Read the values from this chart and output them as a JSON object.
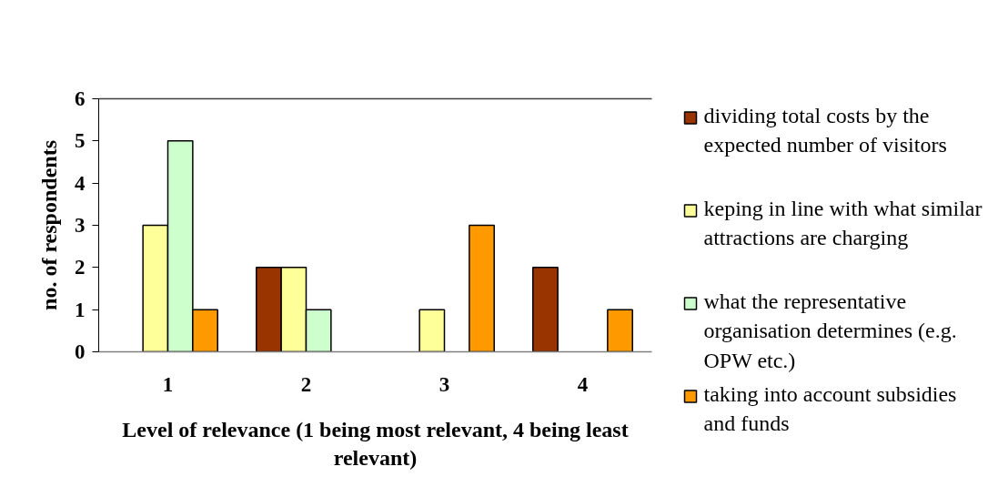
{
  "chart_data": {
    "type": "bar",
    "xlabel": "Level of relevance (1 being most relevant, 4 being least relevant)",
    "ylabel": "no. of respondents",
    "categories": [
      "1",
      "2",
      "3",
      "4"
    ],
    "series": [
      {
        "name": "dividing total costs by the expected number of visitors",
        "color": "#993300",
        "values": [
          0,
          2,
          0,
          2
        ]
      },
      {
        "name": "keping in line with what similar attractions are charging",
        "color": "#ffff99",
        "values": [
          3,
          2,
          1,
          0
        ]
      },
      {
        "name": "what the representative organisation determines (e.g. OPW etc.)",
        "color": "#ccffcc",
        "values": [
          5,
          1,
          0,
          0
        ]
      },
      {
        "name": "taking into account subsidies and funds",
        "color": "#ff9900",
        "values": [
          1,
          0,
          3,
          1
        ]
      }
    ],
    "ylim": [
      0,
      6
    ],
    "yticks": [
      0,
      1,
      2,
      3,
      4,
      5,
      6
    ],
    "grid": false,
    "legend": "right"
  }
}
